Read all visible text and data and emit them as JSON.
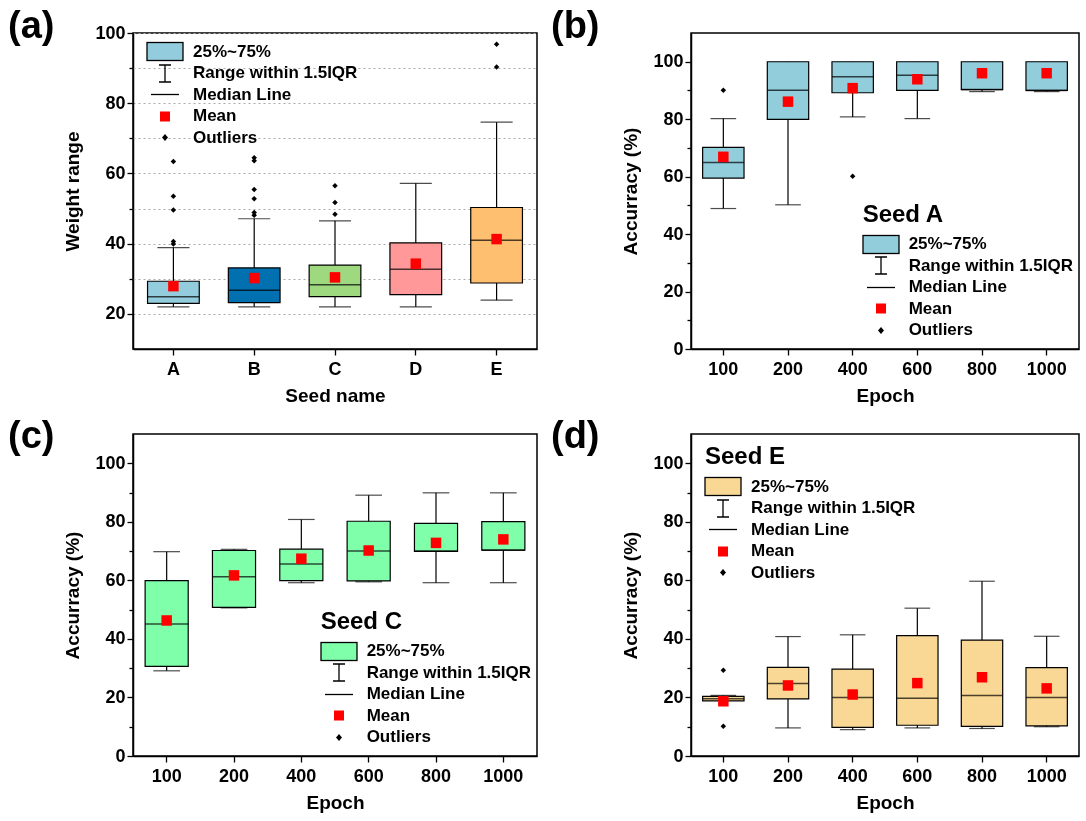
{
  "chart_data": [
    {
      "type": "box",
      "title": "(a)",
      "xlabel": "Seed name",
      "ylabel": "Weight range",
      "categories": [
        "A",
        "B",
        "C",
        "D",
        "E"
      ],
      "colors": [
        "#93cddd",
        "#0070b0",
        "#9ed980",
        "#ff9999",
        "#ffbf70"
      ],
      "boxes": [
        {
          "low": 22,
          "q1": 23,
          "median": 24.9,
          "q3": 29.3,
          "high": 38.9,
          "mean": 27.9,
          "outliers": [
            63.4,
            53.5,
            49.6,
            40.6,
            39.9
          ]
        },
        {
          "low": 22,
          "q1": 23.2,
          "median": 26.7,
          "q3": 33.1,
          "high": 47.1,
          "mean": 30.2,
          "outliers": [
            64.5,
            63.6,
            55.4,
            52.8,
            48.9,
            48.1
          ]
        },
        {
          "low": 22,
          "q1": 24.9,
          "median": 28.3,
          "q3": 33.9,
          "high": 46.5,
          "mean": 30.4,
          "outliers": [
            56.5,
            51.7,
            48.4
          ]
        },
        {
          "low": 22,
          "q1": 25.5,
          "median": 32.7,
          "q3": 40.2,
          "high": 57.2,
          "mean": 34.3
        },
        {
          "low": 23.9,
          "q1": 28.8,
          "median": 41,
          "q3": 50.3,
          "high": 74.6,
          "mean": 41.3,
          "outliers": [
            96.8,
            90.3
          ]
        }
      ],
      "ylim": [
        10,
        100
      ],
      "yticks": [
        20,
        {
          "value": 30,
          "label": null
        },
        40,
        {
          "value": 50,
          "label": null
        },
        60,
        {
          "value": 70,
          "label": null
        },
        80,
        {
          "value": 90,
          "label": null
        },
        100
      ],
      "grid": "y",
      "annotations": [
        "25%~75%",
        "Range within 1.5IQR",
        "Median Line",
        "Mean",
        "Outliers"
      ]
    },
    {
      "type": "box",
      "title": "(b)",
      "subtitle": "Seed A",
      "xlabel": "Epoch",
      "ylabel": "Accurracy (%)",
      "categories": [
        "100",
        "200",
        "400",
        "600",
        "800",
        "1000"
      ],
      "colors": [
        "#92cddc",
        "#92cddc",
        "#92cddc",
        "#92cddc",
        "#92cddc",
        "#92cddc"
      ],
      "boxes": [
        {
          "low": 48.9,
          "q1": 59.5,
          "median": 64.9,
          "q3": 70.2,
          "high": 80.2,
          "mean": 66.9,
          "outliers": [
            90.1
          ]
        },
        {
          "low": 50.2,
          "q1": 79.9,
          "median": 90.1,
          "q3": 100,
          "high": 100,
          "mean": 86.1
        },
        {
          "low": 80.8,
          "q1": 89.2,
          "median": 94.8,
          "q3": 100,
          "high": 100,
          "mean": 90.8,
          "outliers": [
            60.1
          ]
        },
        {
          "low": 80.2,
          "q1": 90,
          "median": 95.3,
          "q3": 100,
          "high": 100,
          "mean": 93.9
        },
        {
          "low": 89.6,
          "q1": 90.3,
          "median": 90.3,
          "q3": 100,
          "high": 100,
          "mean": 96
        },
        {
          "low": 89.6,
          "q1": 90,
          "median": 90,
          "q3": 100,
          "high": 100,
          "mean": 96
        }
      ],
      "ylim": [
        0,
        110
      ],
      "yticks": [
        0,
        {
          "value": 10,
          "label": null
        },
        20,
        {
          "value": 30,
          "label": null
        },
        40,
        {
          "value": 50,
          "label": null
        },
        60,
        {
          "value": 70,
          "label": null
        },
        80,
        {
          "value": 90,
          "label": null
        },
        100
      ],
      "annotations": [
        "25%~75%",
        "Range within 1.5IQR",
        "Median Line",
        "Mean",
        "Outliers"
      ]
    },
    {
      "type": "box",
      "title": "(c)",
      "subtitle": "Seed C",
      "xlabel": "Epoch",
      "ylabel": "Accurracy (%)",
      "categories": [
        "100",
        "200",
        "400",
        "600",
        "800",
        "1000"
      ],
      "colors": [
        "#80ffaa",
        "#80ffaa",
        "#80ffaa",
        "#80ffaa",
        "#80ffaa",
        "#80ffaa"
      ],
      "boxes": [
        {
          "low": 29.1,
          "q1": 30.6,
          "median": 45.1,
          "q3": 59.9,
          "high": 69.8,
          "mean": 46.3
        },
        {
          "low": 50.6,
          "q1": 50.8,
          "median": 61.2,
          "q3": 70.2,
          "high": 70.6,
          "mean": 61.7
        },
        {
          "low": 59.2,
          "q1": 59.9,
          "median": 65.6,
          "q3": 70.7,
          "high": 80.8,
          "mean": 67.4
        },
        {
          "low": 59.5,
          "q1": 59.8,
          "median": 70,
          "q3": 80.2,
          "high": 89.1,
          "mean": 70.2
        },
        {
          "low": 59.2,
          "q1": 69.9,
          "median": 70,
          "q3": 79.5,
          "high": 89.9,
          "mean": 72.8
        },
        {
          "low": 59.2,
          "q1": 70.3,
          "median": 70.3,
          "q3": 80.1,
          "high": 89.9,
          "mean": 74
        }
      ],
      "ylim": [
        0,
        110
      ],
      "yticks": [
        0,
        {
          "value": 10,
          "label": null
        },
        20,
        {
          "value": 30,
          "label": null
        },
        40,
        {
          "value": 50,
          "label": null
        },
        60,
        {
          "value": 70,
          "label": null
        },
        80,
        {
          "value": 90,
          "label": null
        },
        100
      ],
      "annotations": [
        "25%~75%",
        "Range within 1.5IQR",
        "Median Line",
        "Mean",
        "Outliers"
      ]
    },
    {
      "type": "box",
      "title": "(d)",
      "subtitle": "Seed E",
      "xlabel": "Epoch",
      "ylabel": "Accurracy (%)",
      "categories": [
        "100",
        "200",
        "400",
        "600",
        "800",
        "1000"
      ],
      "colors": [
        "#f9d794",
        "#f9d794",
        "#f9d794",
        "#f9d794",
        "#f9d794",
        "#f9d794"
      ],
      "boxes": [
        {
          "low": 18.8,
          "q1": 18.8,
          "median": 19.6,
          "q3": 20.4,
          "high": 20.7,
          "mean": 18.7,
          "outliers": [
            29.3,
            10.2
          ]
        },
        {
          "low": 9.6,
          "q1": 19.5,
          "median": 24.8,
          "q3": 30.3,
          "high": 40.8,
          "mean": 24.1
        },
        {
          "low": 9,
          "q1": 9.8,
          "median": 20,
          "q3": 29.7,
          "high": 41.4,
          "mean": 21
        },
        {
          "low": 9.6,
          "q1": 10.5,
          "median": 19.7,
          "q3": 41.1,
          "high": 50.5,
          "mean": 24.9
        },
        {
          "low": 9.4,
          "q1": 10.1,
          "median": 20.7,
          "q3": 39.6,
          "high": 59.7,
          "mean": 26.9
        },
        {
          "low": 10,
          "q1": 10.3,
          "median": 20,
          "q3": 30.2,
          "high": 40.9,
          "mean": 23.1
        }
      ],
      "ylim": [
        0,
        110
      ],
      "yticks": [
        0,
        {
          "value": 10,
          "label": null
        },
        20,
        {
          "value": 30,
          "label": null
        },
        40,
        {
          "value": 50,
          "label": null
        },
        60,
        {
          "value": 70,
          "label": null
        },
        80,
        {
          "value": 90,
          "label": null
        },
        100
      ],
      "annotations": [
        "25%~75%",
        "Range within 1.5IQR",
        "Median Line",
        "Mean",
        "Outliers"
      ]
    }
  ]
}
